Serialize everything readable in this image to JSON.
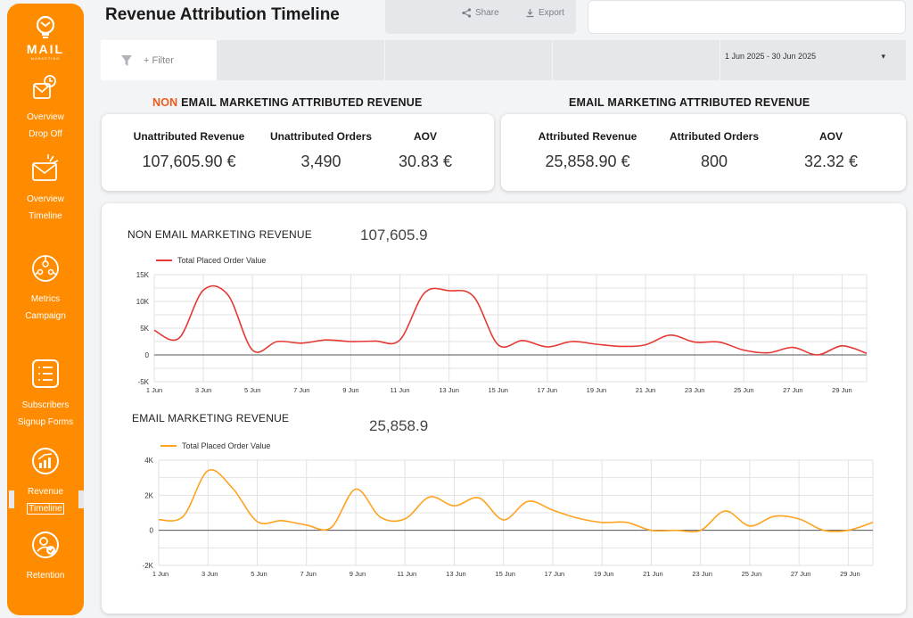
{
  "app": {
    "logo_text": "MAIL",
    "logo_sub": "MARKETING",
    "page_title": "Revenue Attribution Timeline"
  },
  "sidebar": {
    "items": [
      {
        "line1": "Overview",
        "line2": "Drop Off",
        "icon": "dropoff-icon"
      },
      {
        "line1": "Overview",
        "line2": "Timeline",
        "icon": "envelope-icon"
      },
      {
        "line1": "Metrics",
        "line2": "Campaign",
        "icon": "campaign-icon"
      },
      {
        "line1": "Subscribers",
        "line2": "Signup Forms",
        "icon": "form-icon"
      },
      {
        "line1": "Revenue",
        "line2": "Timeline",
        "icon": "revenue-icon"
      },
      {
        "line1": "Retention",
        "line2": "",
        "icon": "retention-icon"
      }
    ],
    "active_index": 4
  },
  "toolbar": {
    "share_label": "Share",
    "export_label": "Export"
  },
  "filters": {
    "filter_label": "+ Filter",
    "date_range": "1 Jun 2025 - 30 Jun 2025"
  },
  "non_email": {
    "heading_highlight": "NON",
    "heading_rest": " EMAIL MARKETING ATTRIBUTED REVENUE",
    "kpis": [
      {
        "label": "Unattributed Revenue",
        "value": "107,605.90 €"
      },
      {
        "label": "Unattributed Orders",
        "value": "3,490"
      },
      {
        "label": "AOV",
        "value": "30.83 €"
      }
    ]
  },
  "email": {
    "heading": "EMAIL MARKETING ATTRIBUTED REVENUE",
    "kpis": [
      {
        "label": "Attributed Revenue",
        "value": "25,858.90 €"
      },
      {
        "label": "Attributed Orders",
        "value": "800"
      },
      {
        "label": "AOV",
        "value": "32.32 €"
      }
    ]
  },
  "charts": {
    "non_email": {
      "title": "NON EMAIL MARKETING REVENUE",
      "total": "107,605.9"
    },
    "email": {
      "title": "EMAIL MARKETING REVENUE",
      "total": "25,858.9"
    }
  },
  "colors": {
    "accent": "#ff8c00",
    "red_series": "#e53935",
    "orange_series": "#ffa21f",
    "highlight": "#f05a1a"
  },
  "chart_data": [
    {
      "type": "line",
      "title": "NON EMAIL MARKETING REVENUE",
      "legend": "Total Placed Order Value",
      "x": [
        "1 Jun",
        "2 Jun",
        "3 Jun",
        "4 Jun",
        "5 Jun",
        "6 Jun",
        "7 Jun",
        "8 Jun",
        "9 Jun",
        "10 Jun",
        "11 Jun",
        "12 Jun",
        "13 Jun",
        "14 Jun",
        "15 Jun",
        "16 Jun",
        "17 Jun",
        "18 Jun",
        "19 Jun",
        "20 Jun",
        "21 Jun",
        "22 Jun",
        "23 Jun",
        "24 Jun",
        "25 Jun",
        "26 Jun",
        "27 Jun",
        "28 Jun",
        "29 Jun",
        "30 Jun"
      ],
      "x_tick_labels": [
        "1 Jun",
        "3 Jun",
        "5 Jun",
        "7 Jun",
        "9 Jun",
        "11 Jun",
        "13 Jun",
        "15 Jun",
        "17 Jun",
        "19 Jun",
        "21 Jun",
        "23 Jun",
        "25 Jun",
        "27 Jun",
        "29 Jun"
      ],
      "series": [
        {
          "name": "Total Placed Order Value",
          "values": [
            4600,
            3100,
            12100,
            11200,
            900,
            2500,
            2200,
            2800,
            2500,
            2600,
            2800,
            11600,
            12000,
            10900,
            1900,
            2700,
            1500,
            2500,
            2000,
            1600,
            1900,
            3700,
            2400,
            2400,
            900,
            400,
            1400,
            0,
            1700,
            300
          ]
        }
      ],
      "y_ticks": [
        -5000,
        0,
        5000,
        10000,
        15000
      ],
      "y_tick_labels": [
        "-5K",
        "0",
        "5K",
        "10K",
        "15K"
      ],
      "ylim": [
        -5000,
        15000
      ]
    },
    {
      "type": "line",
      "title": "EMAIL MARKETING REVENUE",
      "legend": "Total Placed Order Value",
      "x": [
        "1 Jun",
        "2 Jun",
        "3 Jun",
        "4 Jun",
        "5 Jun",
        "6 Jun",
        "7 Jun",
        "8 Jun",
        "9 Jun",
        "10 Jun",
        "11 Jun",
        "12 Jun",
        "13 Jun",
        "14 Jun",
        "15 Jun",
        "16 Jun",
        "17 Jun",
        "18 Jun",
        "19 Jun",
        "20 Jun",
        "21 Jun",
        "22 Jun",
        "23 Jun",
        "24 Jun",
        "25 Jun",
        "26 Jun",
        "27 Jun",
        "28 Jun",
        "29 Jun",
        "30 Jun"
      ],
      "x_tick_labels": [
        "1 Jun",
        "3 Jun",
        "5 Jun",
        "7 Jun",
        "9 Jun",
        "11 Jun",
        "13 Jun",
        "15 Jun",
        "17 Jun",
        "19 Jun",
        "21 Jun",
        "23 Jun",
        "25 Jun",
        "27 Jun",
        "29 Jun"
      ],
      "series": [
        {
          "name": "Total Placed Order Value",
          "values": [
            600,
            800,
            3400,
            2400,
            500,
            550,
            300,
            150,
            2350,
            750,
            650,
            1900,
            1400,
            1850,
            600,
            1650,
            1150,
            700,
            450,
            450,
            0,
            0,
            0,
            1100,
            250,
            800,
            650,
            0,
            0,
            450
          ]
        }
      ],
      "y_ticks": [
        -2000,
        0,
        2000,
        4000
      ],
      "y_tick_labels": [
        "-2K",
        "0",
        "2K",
        "4K"
      ],
      "ylim": [
        -2000,
        4000
      ]
    }
  ]
}
